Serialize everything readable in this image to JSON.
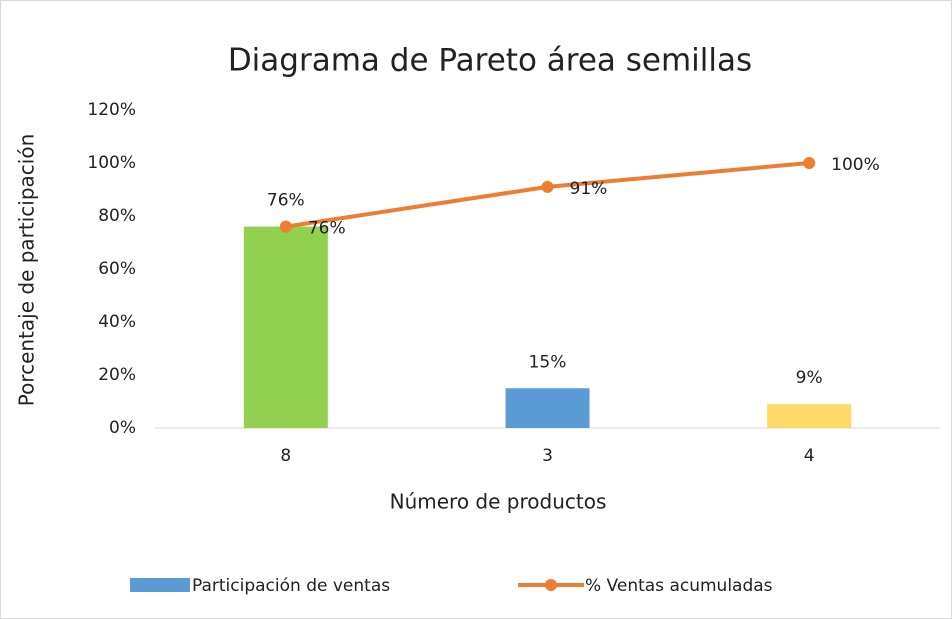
{
  "chart_data": {
    "type": "bar",
    "title": "Diagrama de Pareto área semillas",
    "x_label": "Número de productos",
    "y_label": "Porcentaje de participación",
    "categories": [
      "8",
      "3",
      "4"
    ],
    "series": [
      {
        "name": "Participación de ventas",
        "type": "bar",
        "color": "#5b9bd5",
        "colors": [
          "#92d050",
          "#5b9bd5",
          "#ffd966"
        ],
        "values": [
          76,
          15,
          9
        ],
        "value_labels": [
          "76%",
          "15%",
          "9%"
        ]
      },
      {
        "name": "% Ventas acumuladas",
        "type": "line",
        "color": "#ed7d31",
        "values": [
          76,
          91,
          100
        ],
        "value_labels": [
          "76%",
          "91%",
          "100%"
        ]
      }
    ],
    "ylim": [
      0,
      120
    ],
    "yticks": [
      {
        "value": 0,
        "label": "0%"
      },
      {
        "value": 20,
        "label": "20%"
      },
      {
        "value": 40,
        "label": "40%"
      },
      {
        "value": 60,
        "label": "60%"
      },
      {
        "value": 80,
        "label": "80%"
      },
      {
        "value": 100,
        "label": "100%"
      },
      {
        "value": 120,
        "label": "120%"
      }
    ],
    "grid": false,
    "legend": "bottom"
  }
}
